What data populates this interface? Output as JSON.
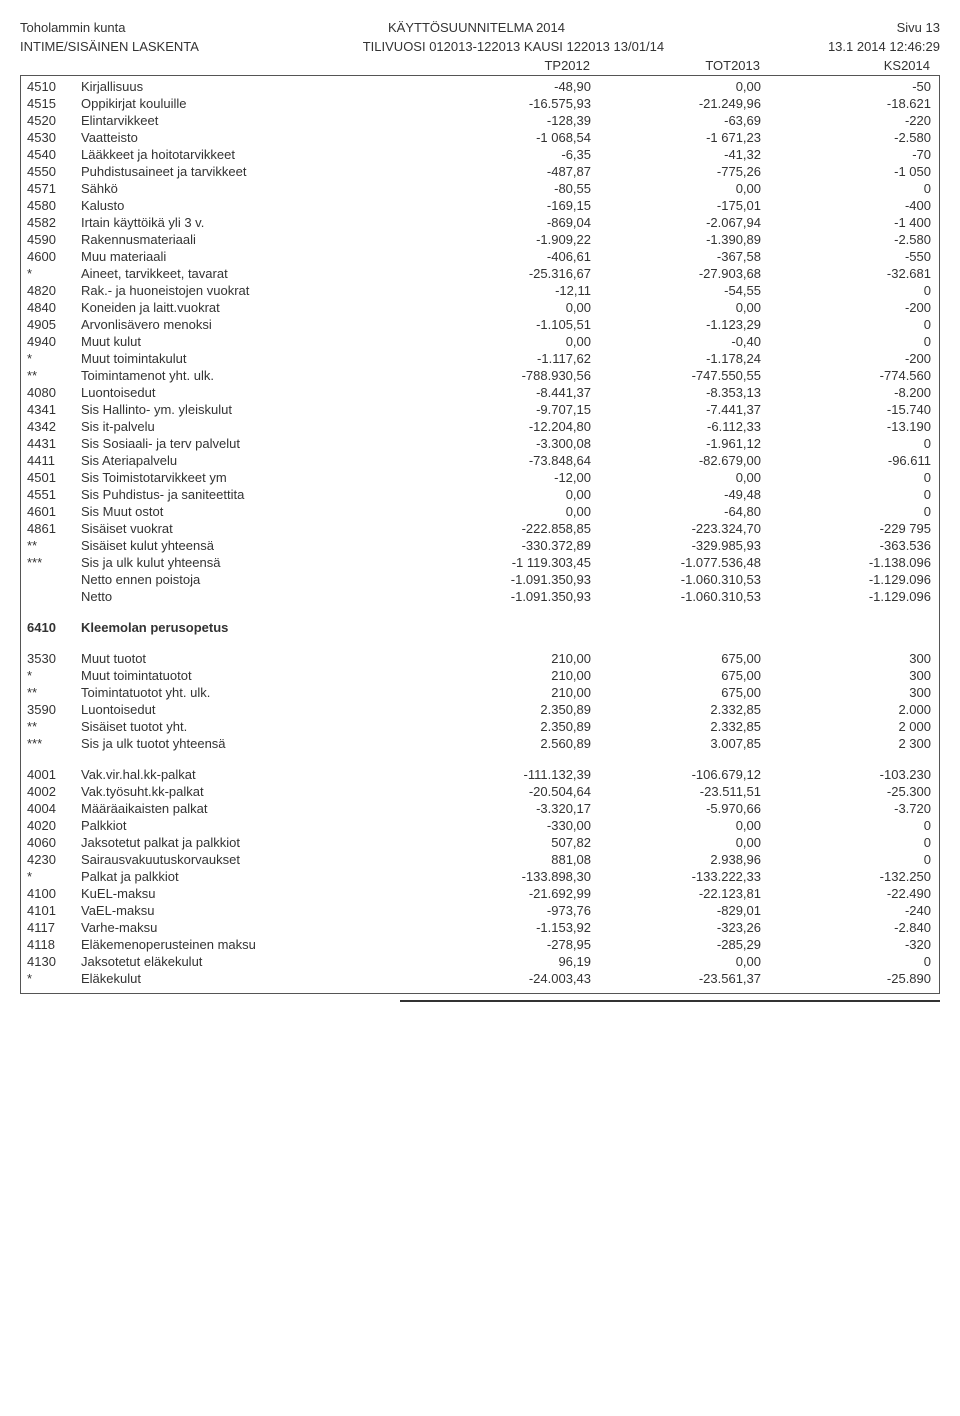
{
  "header": {
    "org": "Toholammin kunta",
    "title": "KÄYTTÖSUUNNITELMA 2014",
    "page": "Sivu 13",
    "system": "INTIME/SISÄINEN LASKENTA",
    "fiscal": "TILIVUOSI 012013-122013 KAUSI 122013 13/01/14",
    "timestamp": "13.1 2014 12:46:29"
  },
  "columns": {
    "c1": "TP2012",
    "c2": "TOT2013",
    "c3": "KS2014"
  },
  "rows": [
    {
      "code": "4510",
      "desc": "Kirjallisuus",
      "v1": "-48,90",
      "v2": "0,00",
      "v3": "-50"
    },
    {
      "code": "4515",
      "desc": "Oppikirjat kouluille",
      "v1": "-16.575,93",
      "v2": "-21.249,96",
      "v3": "-18.621"
    },
    {
      "code": "4520",
      "desc": "Elintarvikkeet",
      "v1": "-128,39",
      "v2": "-63,69",
      "v3": "-220"
    },
    {
      "code": "4530",
      "desc": "Vaatteisto",
      "v1": "-1 068,54",
      "v2": "-1 671,23",
      "v3": "-2.580"
    },
    {
      "code": "4540",
      "desc": "Lääkkeet ja hoitotarvikkeet",
      "v1": "-6,35",
      "v2": "-41,32",
      "v3": "-70"
    },
    {
      "code": "4550",
      "desc": "Puhdistusaineet ja tarvikkeet",
      "v1": "-487,87",
      "v2": "-775,26",
      "v3": "-1 050"
    },
    {
      "code": "4571",
      "desc": "Sähkö",
      "v1": "-80,55",
      "v2": "0,00",
      "v3": "0"
    },
    {
      "code": "4580",
      "desc": "Kalusto",
      "v1": "-169,15",
      "v2": "-175,01",
      "v3": "-400"
    },
    {
      "code": "4582",
      "desc": "Irtain käyttöikä yli 3 v.",
      "v1": "-869,04",
      "v2": "-2.067,94",
      "v3": "-1 400"
    },
    {
      "code": "4590",
      "desc": "Rakennusmateriaali",
      "v1": "-1.909,22",
      "v2": "-1.390,89",
      "v3": "-2.580"
    },
    {
      "code": "4600",
      "desc": "Muu materiaali",
      "v1": "-406,61",
      "v2": "-367,58",
      "v3": "-550"
    },
    {
      "code": "*",
      "desc": "Aineet, tarvikkeet, tavarat",
      "v1": "-25.316,67",
      "v2": "-27.903,68",
      "v3": "-32.681"
    },
    {
      "code": "4820",
      "desc": "Rak.- ja huoneistojen vuokrat",
      "v1": "-12,11",
      "v2": "-54,55",
      "v3": "0"
    },
    {
      "code": "4840",
      "desc": "Koneiden ja laitt.vuokrat",
      "v1": "0,00",
      "v2": "0,00",
      "v3": "-200"
    },
    {
      "code": "4905",
      "desc": "Arvonlisävero menoksi",
      "v1": "-1.105,51",
      "v2": "-1.123,29",
      "v3": "0"
    },
    {
      "code": "4940",
      "desc": "Muut kulut",
      "v1": "0,00",
      "v2": "-0,40",
      "v3": "0"
    },
    {
      "code": "*",
      "desc": "Muut toimintakulut",
      "v1": "-1.117,62",
      "v2": "-1.178,24",
      "v3": "-200"
    },
    {
      "code": "**",
      "desc": "Toimintamenot yht. ulk.",
      "v1": "-788.930,56",
      "v2": "-747.550,55",
      "v3": "-774.560"
    },
    {
      "code": "4080",
      "desc": "Luontoisedut",
      "v1": "-8.441,37",
      "v2": "-8.353,13",
      "v3": "-8.200"
    },
    {
      "code": "4341",
      "desc": "Sis Hallinto- ym. yleiskulut",
      "v1": "-9.707,15",
      "v2": "-7.441,37",
      "v3": "-15.740"
    },
    {
      "code": "4342",
      "desc": "Sis it-palvelu",
      "v1": "-12.204,80",
      "v2": "-6.112,33",
      "v3": "-13.190"
    },
    {
      "code": "4431",
      "desc": "Sis Sosiaali- ja terv palvelut",
      "v1": "-3.300,08",
      "v2": "-1.961,12",
      "v3": "0"
    },
    {
      "code": "4411",
      "desc": "Sis Ateriapalvelu",
      "v1": "-73.848,64",
      "v2": "-82.679,00",
      "v3": "-96.611"
    },
    {
      "code": "4501",
      "desc": "Sis Toimistotarvikkeet ym",
      "v1": "-12,00",
      "v2": "0,00",
      "v3": "0"
    },
    {
      "code": "4551",
      "desc": "Sis Puhdistus- ja saniteettita",
      "v1": "0,00",
      "v2": "-49,48",
      "v3": "0"
    },
    {
      "code": "4601",
      "desc": "Sis Muut ostot",
      "v1": "0,00",
      "v2": "-64,80",
      "v3": "0"
    },
    {
      "code": "4861",
      "desc": "Sisäiset vuokrat",
      "v1": "-222.858,85",
      "v2": "-223.324,70",
      "v3": "-229 795"
    },
    {
      "code": "**",
      "desc": "Sisäiset kulut yhteensä",
      "v1": "-330.372,89",
      "v2": "-329.985,93",
      "v3": "-363.536"
    },
    {
      "code": "***",
      "desc": "Sis ja ulk kulut yhteensä",
      "v1": "-1 119.303,45",
      "v2": "-1.077.536,48",
      "v3": "-1.138.096"
    },
    {
      "code": "",
      "desc": "Netto ennen poistoja",
      "v1": "-1.091.350,93",
      "v2": "-1.060.310,53",
      "v3": "-1.129.096"
    },
    {
      "code": "",
      "desc": "Netto",
      "v1": "-1.091.350,93",
      "v2": "-1.060.310,53",
      "v3": "-1.129.096"
    },
    {
      "spacer": true
    },
    {
      "code": "6410",
      "desc": "Kleemolan perusopetus",
      "bold": true,
      "v1": "",
      "v2": "",
      "v3": ""
    },
    {
      "spacer": true
    },
    {
      "code": "3530",
      "desc": "Muut tuotot",
      "v1": "210,00",
      "v2": "675,00",
      "v3": "300"
    },
    {
      "code": "*",
      "desc": "Muut toimintatuotot",
      "v1": "210,00",
      "v2": "675,00",
      "v3": "300"
    },
    {
      "code": "**",
      "desc": "Toimintatuotot yht. ulk.",
      "v1": "210,00",
      "v2": "675,00",
      "v3": "300"
    },
    {
      "code": "3590",
      "desc": "Luontoisedut",
      "v1": "2.350,89",
      "v2": "2.332,85",
      "v3": "2.000"
    },
    {
      "code": "**",
      "desc": "Sisäiset tuotot yht.",
      "v1": "2.350,89",
      "v2": "2.332,85",
      "v3": "2 000"
    },
    {
      "code": "***",
      "desc": "Sis ja ulk tuotot yhteensä",
      "v1": "2.560,89",
      "v2": "3.007,85",
      "v3": "2 300"
    },
    {
      "spacer": true
    },
    {
      "code": "4001",
      "desc": "Vak.vir.hal.kk-palkat",
      "v1": "-111.132,39",
      "v2": "-106.679,12",
      "v3": "-103.230"
    },
    {
      "code": "4002",
      "desc": "Vak.työsuht.kk-palkat",
      "v1": "-20.504,64",
      "v2": "-23.511,51",
      "v3": "-25.300"
    },
    {
      "code": "4004",
      "desc": "Määräaikaisten palkat",
      "v1": "-3.320,17",
      "v2": "-5.970,66",
      "v3": "-3.720"
    },
    {
      "code": "4020",
      "desc": "Palkkiot",
      "v1": "-330,00",
      "v2": "0,00",
      "v3": "0"
    },
    {
      "code": "4060",
      "desc": "Jaksotetut palkat ja palkkiot",
      "v1": "507,82",
      "v2": "0,00",
      "v3": "0"
    },
    {
      "code": "4230",
      "desc": "Sairausvakuutuskorvaukset",
      "v1": "881,08",
      "v2": "2.938,96",
      "v3": "0"
    },
    {
      "code": "*",
      "desc": "Palkat ja palkkiot",
      "v1": "-133.898,30",
      "v2": "-133.222,33",
      "v3": "-132.250"
    },
    {
      "code": "4100",
      "desc": "KuEL-maksu",
      "v1": "-21.692,99",
      "v2": "-22.123,81",
      "v3": "-22.490"
    },
    {
      "code": "4101",
      "desc": "VaEL-maksu",
      "v1": "-973,76",
      "v2": "-829,01",
      "v3": "-240"
    },
    {
      "code": "4117",
      "desc": "Varhe-maksu",
      "v1": "-1.153,92",
      "v2": "-323,26",
      "v3": "-2.840"
    },
    {
      "code": "4118",
      "desc": "Eläkemenoperusteinen maksu",
      "v1": "-278,95",
      "v2": "-285,29",
      "v3": "-320"
    },
    {
      "code": "4130",
      "desc": "Jaksotetut eläkekulut",
      "v1": "96,19",
      "v2": "0,00",
      "v3": "0"
    },
    {
      "code": "*",
      "desc": "Eläkekulut",
      "v1": "-24.003,43",
      "v2": "-23.561,37",
      "v3": "-25.890"
    }
  ]
}
